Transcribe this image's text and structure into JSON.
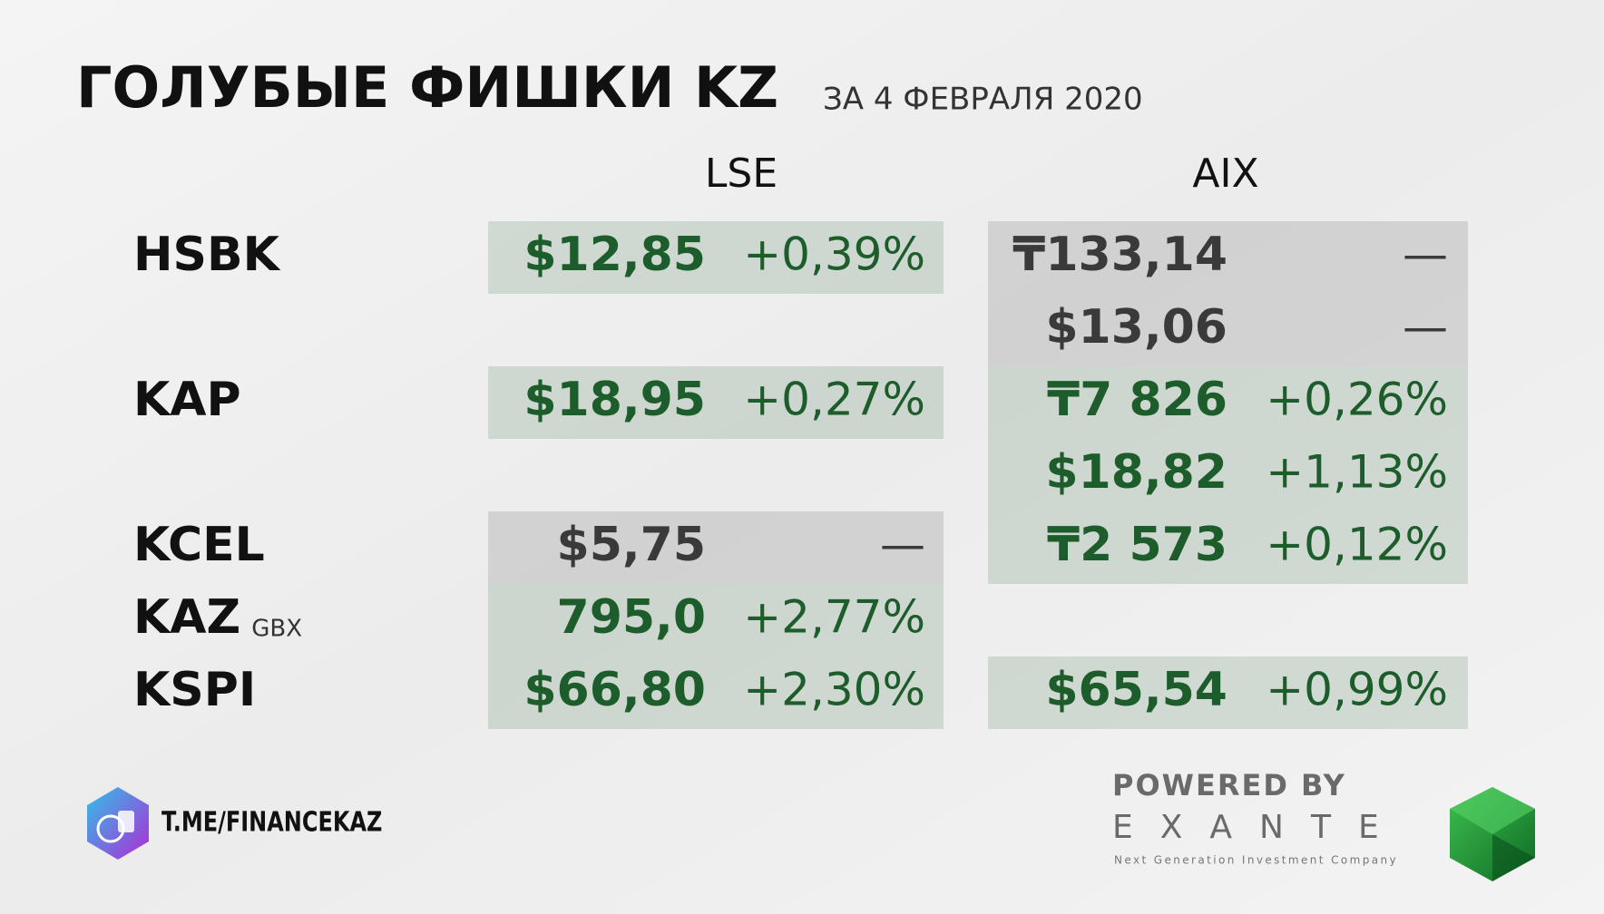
{
  "header": {
    "title": "ГОЛУБЫЕ ФИШКИ KZ",
    "subtitle": "ЗА 4 ФЕВРАЛЯ 2020"
  },
  "table": {
    "columns": [
      "LSE",
      "AIX"
    ],
    "rows": [
      {
        "ticker": "HSBK",
        "lse": {
          "price": "$12,85",
          "change": "+0,39%",
          "color": "#1d5c2b"
        },
        "aix": [
          {
            "price": "₸133,14",
            "change": "—",
            "color": "#3a3a3a"
          },
          {
            "price": "$13,06",
            "change": "—",
            "color": "#3a3a3a"
          }
        ]
      },
      {
        "ticker": "KAP",
        "lse": {
          "price": "$18,95",
          "change": "+0,27%",
          "color": "#1d5c2b"
        },
        "aix": [
          {
            "price": "₸7 826",
            "change": "+0,26%",
            "color": "#1d5c2b"
          },
          {
            "price": "$18,82",
            "change": "+1,13%",
            "color": "#1d5c2b"
          }
        ]
      },
      {
        "ticker": "KCEL",
        "lse": {
          "price": "$5,75",
          "change": "—",
          "color": "#3a3a3a"
        },
        "aix": [
          {
            "price": "₸2 573",
            "change": "+0,12%",
            "color": "#1d5c2b"
          }
        ]
      },
      {
        "ticker": "KAZ",
        "unit": "GBX",
        "lse": {
          "price": "795,0",
          "change": "+2,77%",
          "color": "#1d5c2b"
        },
        "aix": []
      },
      {
        "ticker": "KSPI",
        "lse": {
          "price": "$66,80",
          "change": "+2,30%",
          "color": "#1d5c2b"
        },
        "aix": [
          {
            "price": "$65,54",
            "change": "+0,99%",
            "color": "#1d5c2b"
          }
        ]
      }
    ]
  },
  "footer": {
    "channel": "T.ME/FINANCEKAZ",
    "powered_by": "POWERED BY",
    "brand": "EXANTE",
    "tagline": "Next Generation Investment Company"
  }
}
